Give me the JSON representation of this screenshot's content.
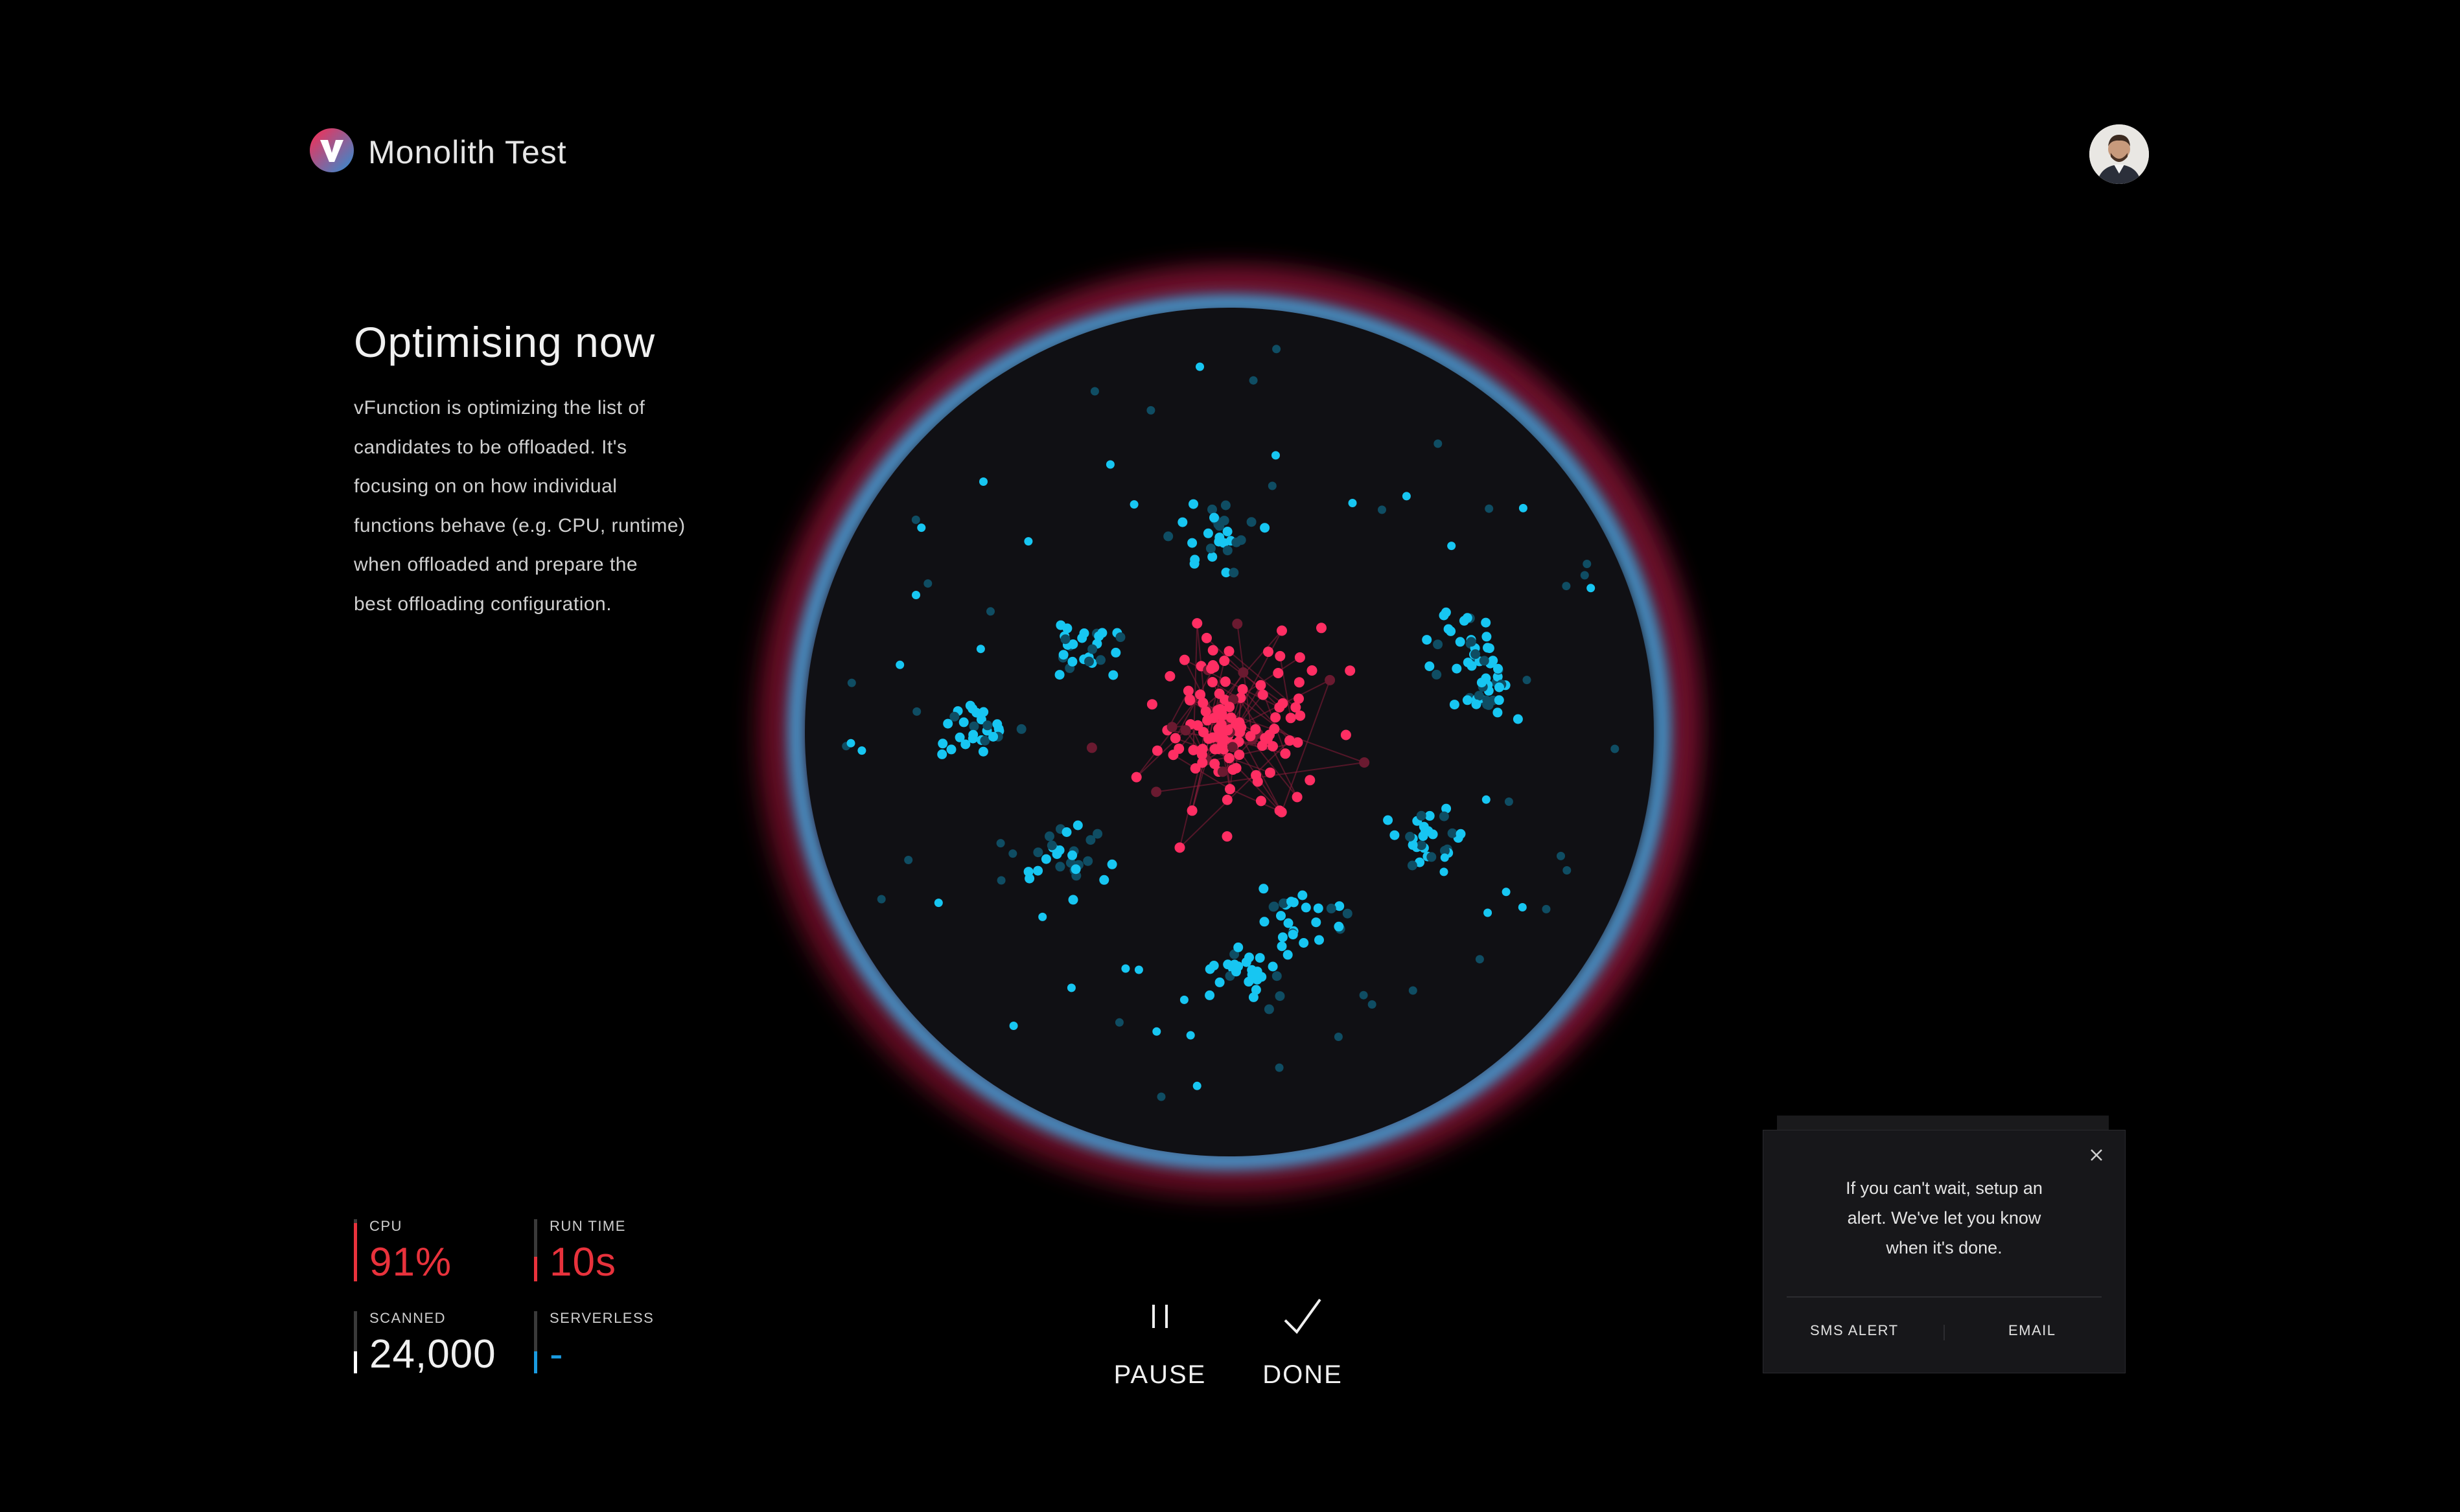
{
  "header": {
    "app_title": "Monolith Test",
    "logo_icon": "v-logo-icon",
    "avatar_icon": "user-avatar-icon"
  },
  "intro": {
    "title": "Optimising now",
    "lines": [
      "vFunction is optimizing the list of",
      "candidates to be offloaded. It's",
      "focusing on on how individual",
      "functions behave (e.g. CPU, runtime)",
      "when offloaded and prepare the",
      "best offloading configuration."
    ]
  },
  "stats": {
    "cpu": {
      "label": "CPU",
      "value": "91%",
      "color": "#e8323c"
    },
    "run_time": {
      "label": "RUN TIME",
      "value": "10s",
      "color": "#e8323c"
    },
    "scanned": {
      "label": "SCANNED",
      "value": "24,000",
      "color": "#ffffff"
    },
    "serverless": {
      "label": "SERVERLESS",
      "value": "-",
      "color": "#1a9be0"
    }
  },
  "controls": {
    "pause_label": "PAUSE",
    "pause_icon": "pause-icon",
    "done_label": "DONE",
    "done_icon": "checkmark-icon"
  },
  "alert": {
    "lines": [
      "If you can't wait, setup an",
      "alert. We've let you know",
      "when it's done."
    ],
    "close_icon": "close-icon",
    "sms_label": "SMS ALERT",
    "email_label": "EMAIL"
  },
  "colors": {
    "background": "#000000",
    "globe_fill": "#101014",
    "ring_blue": "#4aa3dc",
    "ring_red": "#e0284f",
    "node_red": "#ff2e63",
    "node_cyan": "#17c6f2",
    "node_dim": "#0f4d63"
  }
}
